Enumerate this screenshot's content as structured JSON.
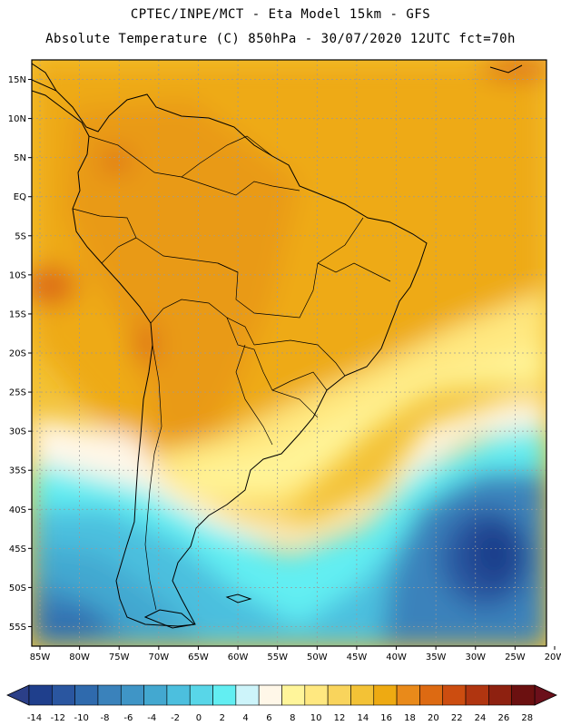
{
  "header": {
    "line1": "CPTEC/INPE/MCT -  Eta Model 15km - GFS",
    "line2": "Absolute Temperature (C) 850hPa - 30/07/2020 12UTC fct=70h"
  },
  "map": {
    "lat_labels": [
      "15N",
      "10N",
      "5N",
      "EQ",
      "5S",
      "10S",
      "15S",
      "20S",
      "25S",
      "30S",
      "35S",
      "40S",
      "45S",
      "50S",
      "55S"
    ],
    "lon_labels": [
      "85W",
      "80W",
      "75W",
      "70W",
      "65W",
      "60W",
      "55W",
      "50W",
      "45W",
      "40W",
      "35W",
      "30W",
      "25W",
      "20W"
    ]
  },
  "colorbar": {
    "labels": [
      "-14",
      "-12",
      "-10",
      "-8",
      "-6",
      "-4",
      "-2",
      "0",
      "2",
      "4",
      "6",
      "8",
      "10",
      "12",
      "14",
      "16",
      "18",
      "20",
      "22",
      "24",
      "26",
      "28"
    ],
    "colors": [
      "#1f3f8c",
      "#2a56a0",
      "#2f6aad",
      "#3a82bb",
      "#3f95c6",
      "#43a8d0",
      "#4cbfde",
      "#58d6e8",
      "#62eef2",
      "#cdf4fa",
      "#fff7e8",
      "#fff59a",
      "#ffe880",
      "#f9d45c",
      "#f3c236",
      "#eeaa12",
      "#e98a1a",
      "#dd6a12",
      "#cc4d10",
      "#b03510",
      "#8e2110",
      "#6b1010"
    ]
  },
  "legend_colors": {
    "land_outline": "#000000",
    "grid": "#9a9a9a"
  }
}
